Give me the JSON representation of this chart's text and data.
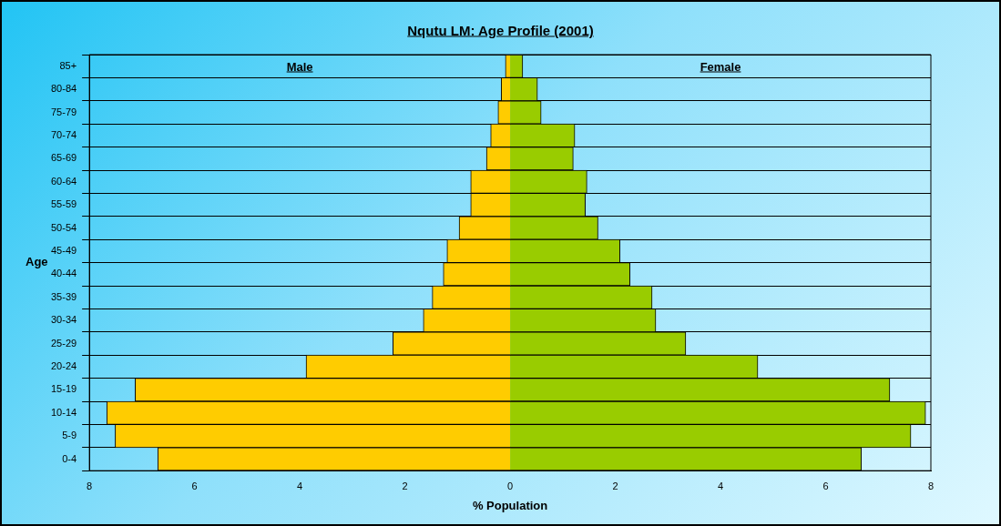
{
  "chart_data": {
    "type": "bar",
    "orientation": "horizontal",
    "stacked": true,
    "title": "Nqutu LM: Age Profile (2001)",
    "xlabel": "% Population",
    "ylabel": "Age",
    "categories": [
      "85+",
      "80-84",
      "75-79",
      "70-74",
      "65-69",
      "60-64",
      "55-59",
      "50-54",
      "45-49",
      "40-44",
      "35-39",
      "30-34",
      "25-29",
      "20-24",
      "15-19",
      "10-14",
      "5-9",
      "0-4"
    ],
    "series": [
      {
        "color": "#ffcc00",
        "values": [
          -0.09,
          -0.17,
          -0.23,
          -0.37,
          -0.45,
          -0.75,
          -0.75,
          -0.97,
          -1.2,
          -1.27,
          -1.48,
          -1.65,
          -2.23,
          -3.88,
          -7.13,
          -7.67,
          -7.51,
          -6.7
        ]
      },
      {
        "color": "#99cc00",
        "values": [
          0.24,
          0.52,
          0.59,
          1.23,
          1.2,
          1.46,
          1.43,
          1.67,
          2.09,
          2.28,
          2.7,
          2.77,
          3.34,
          4.71,
          7.22,
          7.9,
          7.62,
          6.68
        ]
      }
    ],
    "xlim": [
      -8,
      8
    ],
    "xticks": [
      {
        "value": -8,
        "label": "8"
      },
      {
        "value": -6,
        "label": "6"
      },
      {
        "value": -4,
        "label": "4"
      },
      {
        "value": -2,
        "label": "2"
      },
      0,
      2,
      4,
      6,
      8
    ],
    "annotations": [
      "Male",
      "Female"
    ],
    "grid": "y",
    "legend": false
  }
}
